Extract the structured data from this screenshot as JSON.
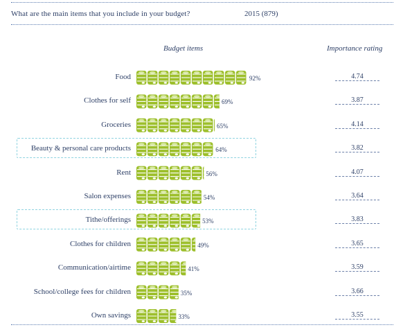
{
  "header": {
    "question": "What are the main items that you include in your budget?",
    "year": "2015 (879)"
  },
  "columns": {
    "budget": "Budget items",
    "rating": "Importance rating"
  },
  "colors": {
    "coin_green": "#9dbf2c",
    "coin_light": "#d9e9a6",
    "text": "#2d3f66",
    "highlight_border": "#8fd3e0"
  },
  "chart_data": {
    "type": "bar",
    "categories": [
      "Food",
      "Clothes for self",
      "Groceries",
      "Beauty & personal care products",
      "Rent",
      "Salon expenses",
      "Tithe/offerings",
      "Clothes for children",
      "Communication/airtime",
      "School/college fees for children",
      "Own savings"
    ],
    "values": [
      92,
      69,
      65,
      64,
      56,
      54,
      53,
      49,
      41,
      35,
      33
    ],
    "value_labels": [
      "92%",
      "69%",
      "65%",
      "64%",
      "56%",
      "54%",
      "53%",
      "49%",
      "41%",
      "35%",
      "33%"
    ],
    "importance_ratings": [
      "4.74",
      "3.87",
      "4.14",
      "3.82",
      "4.07",
      "3.64",
      "3.83",
      "3.65",
      "3.59",
      "3.66",
      "3.55"
    ],
    "highlighted": [
      "Beauty & personal care products",
      "Tithe/offerings"
    ],
    "icon": "coin-stack-icon",
    "ylim": [
      0,
      100
    ]
  }
}
